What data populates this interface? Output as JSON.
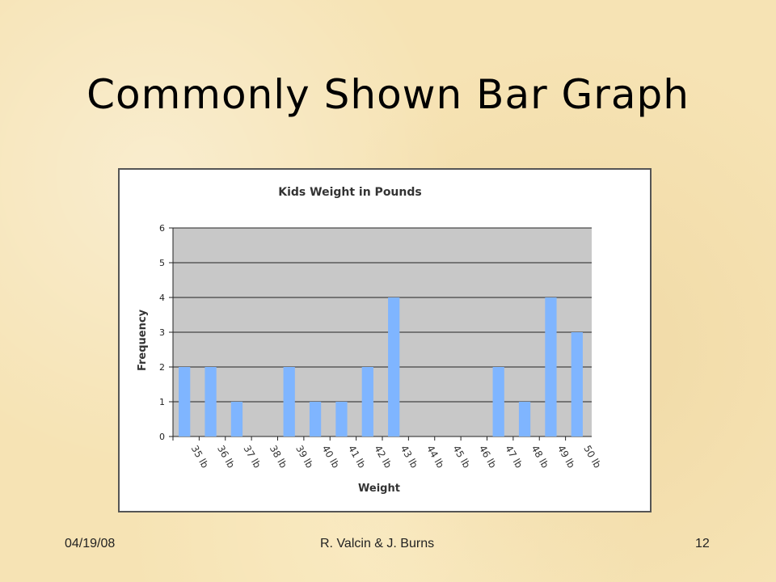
{
  "slide": {
    "title": "Commonly Shown Bar Graph",
    "footer_date": "04/19/08",
    "footer_author": "R. Valcin & J. Burns",
    "footer_page": "12"
  },
  "chart_data": {
    "type": "bar",
    "title": "Kids Weight in Pounds",
    "xlabel": "Weight",
    "ylabel": "Frequency",
    "categories": [
      "35 lb",
      "36 lb",
      "37 lb",
      "38 lb",
      "39 lb",
      "40 lb",
      "41 lb",
      "42 lb",
      "43 lb",
      "44 lb",
      "45 lb",
      "46 lb",
      "47 lb",
      "48 lb",
      "49 lb",
      "50 lb"
    ],
    "values": [
      2,
      2,
      1,
      0,
      2,
      1,
      1,
      2,
      4,
      0,
      0,
      0,
      2,
      1,
      4,
      3
    ],
    "ylim": [
      0,
      6
    ],
    "yticks": [
      0,
      1,
      2,
      3,
      4,
      5,
      6
    ],
    "grid": true,
    "bar_color": "#7fb5ff",
    "plot_bg": "#c8c8c8"
  }
}
